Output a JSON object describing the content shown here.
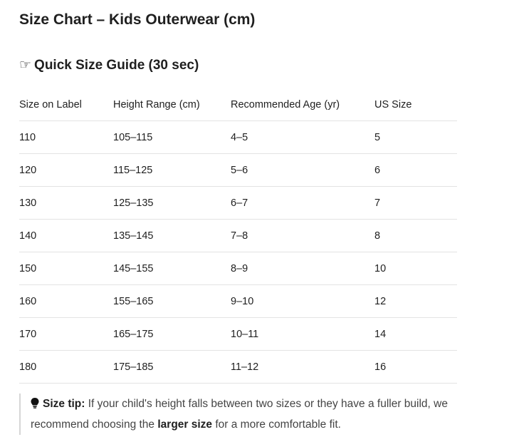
{
  "title": "Size Chart – Kids Outerwear (cm)",
  "guide": {
    "icon": "☞",
    "heading": "Quick Size Guide (30 sec)"
  },
  "table": {
    "header": [
      "Size on Label",
      "Height Range (cm)",
      "Recommended Age (yr)",
      "US Size"
    ],
    "rows": [
      [
        "110",
        "105–115",
        "4–5",
        "5"
      ],
      [
        "120",
        "115–125",
        "5–6",
        "6"
      ],
      [
        "130",
        "125–135",
        "6–7",
        "7"
      ],
      [
        "140",
        "135–145",
        "7–8",
        "8"
      ],
      [
        "150",
        "145–155",
        "8–9",
        "10"
      ],
      [
        "160",
        "155–165",
        "9–10",
        "12"
      ],
      [
        "170",
        "165–175",
        "10–11",
        "14"
      ],
      [
        "180",
        "175–185",
        "11–12",
        "16"
      ]
    ]
  },
  "tip": {
    "label": "Size tip:",
    "text_1": "If your child's height falls between two sizes or they have a fuller build, we recommend choosing the",
    "emphasis": "larger size",
    "text_2": "for a more comfortable fit."
  }
}
